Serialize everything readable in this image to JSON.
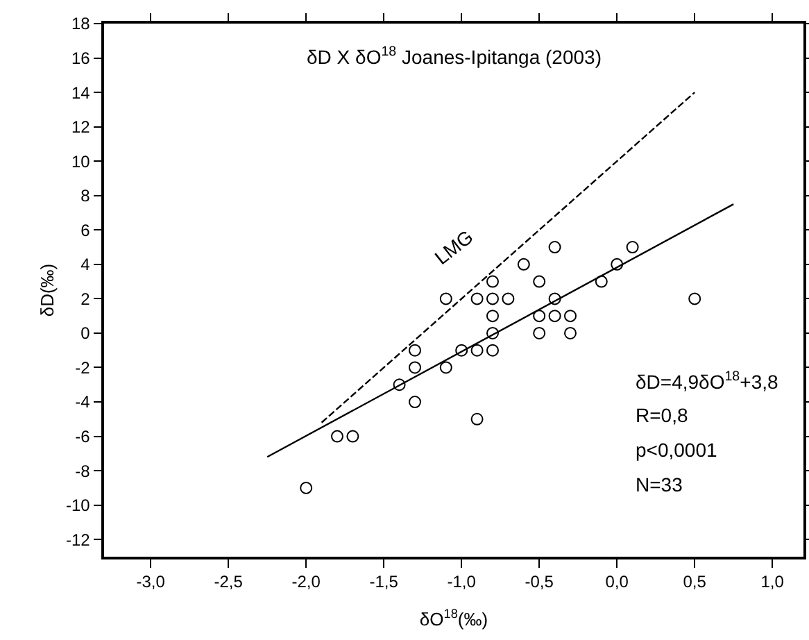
{
  "chart_data": {
    "type": "scatter",
    "title": "δD X δO$^{18}$ Joanes-Ipitanga (2003)",
    "xlabel": "δO$^{18}$(‰)",
    "ylabel": "δD(‰)",
    "series": [
      {
        "color": "#000000",
        "marker": "circle",
        "x": [
          -2.0,
          -1.8,
          -1.7,
          -1.4,
          -1.3,
          -1.3,
          -1.3,
          -1.1,
          -1.1,
          -1.0,
          -0.9,
          -0.9,
          -0.9,
          -0.8,
          -0.8,
          -0.8,
          -0.8,
          -0.8,
          -0.7,
          -0.6,
          -0.5,
          -0.5,
          -0.5,
          -0.4,
          -0.4,
          -0.4,
          -0.3,
          -0.3,
          -0.1,
          0.0,
          0.1,
          0.5
        ],
        "values": [
          -9,
          -6,
          -6,
          -3,
          -1,
          -2,
          -4,
          -2,
          2,
          -1,
          2,
          -1,
          -5,
          3,
          2,
          1,
          0,
          -1,
          2,
          4,
          3,
          1,
          0,
          5,
          2,
          1,
          1,
          0,
          3,
          4,
          5,
          2
        ]
      },
      {
        "type": "line",
        "color": "#000000",
        "line_style": "solid",
        "x": [
          -2.25,
          0.75
        ],
        "values": [
          -7.2,
          7.5
        ]
      },
      {
        "type": "line",
        "color": "#000000",
        "line_style": "dashed",
        "x": [
          -1.9,
          0.5
        ],
        "values": [
          -5.2,
          14.0
        ]
      }
    ],
    "annotations": [
      "LMG",
      "δD=4,9δO$^{18}$+3,8",
      "R=0,8",
      "p<0,0001",
      "N=33"
    ],
    "xlim": [
      -3.3,
      1.2
    ],
    "ylim": [
      -13,
      18
    ],
    "xticks": [
      {
        "value": -3.0,
        "label": "-3,0"
      },
      {
        "value": -2.5,
        "label": "-2,5"
      },
      {
        "value": -2.0,
        "label": "-2,0"
      },
      {
        "value": -1.5,
        "label": "-1,5"
      },
      {
        "value": -1.0,
        "label": "-1,0"
      },
      {
        "value": -0.5,
        "label": "-0,5"
      },
      {
        "value": 0.0,
        "label": "0,0"
      },
      {
        "value": 0.5,
        "label": "0,5"
      },
      {
        "value": 1.0,
        "label": "1,0"
      }
    ],
    "yticks": [
      -12,
      -10,
      -8,
      -6,
      -4,
      -2,
      0,
      2,
      4,
      6,
      8,
      10,
      12,
      14,
      16,
      18
    ],
    "grid": false,
    "legend": false
  }
}
